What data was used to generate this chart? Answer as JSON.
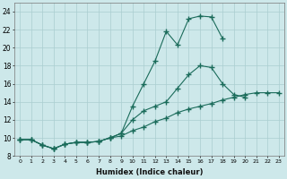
{
  "line1_x": [
    0,
    1,
    2,
    3,
    4,
    5,
    6,
    7,
    8,
    9,
    10,
    11,
    12,
    13,
    14,
    15,
    16,
    17,
    18
  ],
  "line1_y": [
    9.8,
    9.8,
    9.2,
    8.8,
    9.3,
    9.5,
    9.5,
    9.6,
    10.0,
    10.5,
    13.5,
    16.0,
    18.5,
    21.8,
    20.3,
    23.2,
    23.5,
    23.4,
    21.0
  ],
  "line2_x": [
    0,
    1,
    2,
    3,
    4,
    5,
    6,
    7,
    8,
    9,
    10,
    11,
    12,
    13,
    14,
    15,
    16,
    17,
    18,
    19,
    20,
    21,
    22,
    23
  ],
  "line2_y": [
    9.8,
    9.8,
    9.2,
    8.8,
    9.3,
    9.5,
    9.5,
    9.6,
    10.0,
    10.5,
    12.0,
    13.0,
    13.5,
    14.0,
    15.5,
    17.0,
    18.0,
    17.8,
    16.0,
    14.8,
    14.5,
    null,
    null,
    null
  ],
  "line3_x": [
    0,
    1,
    2,
    3,
    4,
    5,
    6,
    7,
    8,
    9,
    10,
    11,
    12,
    13,
    14,
    15,
    16,
    17,
    18,
    19,
    20,
    21,
    22,
    23
  ],
  "line3_y": [
    9.8,
    9.8,
    9.2,
    8.8,
    9.3,
    9.5,
    9.5,
    9.6,
    10.0,
    10.2,
    10.8,
    11.2,
    11.8,
    12.2,
    12.8,
    13.2,
    13.5,
    13.8,
    14.2,
    14.5,
    14.8,
    15.0,
    15.0,
    15.0
  ],
  "line_color": "#1a6b5a",
  "bg_color": "#cde8ea",
  "grid_color": "#aacdd0",
  "xlabel": "Humidex (Indice chaleur)",
  "ylim": [
    8,
    25
  ],
  "xlim": [
    -0.5,
    23.5
  ],
  "yticks": [
    8,
    10,
    12,
    14,
    16,
    18,
    20,
    22,
    24
  ],
  "xticks": [
    0,
    1,
    2,
    3,
    4,
    5,
    6,
    7,
    8,
    9,
    10,
    11,
    12,
    13,
    14,
    15,
    16,
    17,
    18,
    19,
    20,
    21,
    22,
    23
  ]
}
